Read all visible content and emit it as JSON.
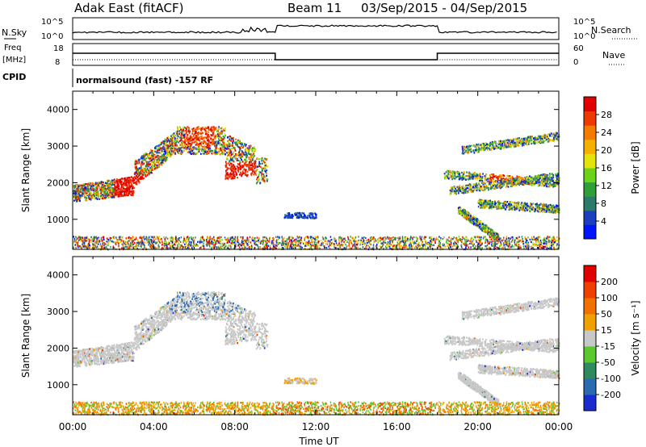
{
  "header": {
    "station": "Adak East (fitACF)",
    "beam_label": "Beam 11",
    "date_range": "03/Sep/2015 - 04/Sep/2015"
  },
  "strip": {
    "nsky_label": "N.Sky",
    "nsky_ticks": [
      "10^5",
      "10^0"
    ],
    "nsearch_label": "N.Search",
    "nsearch_ticks": [
      "10^5",
      "10^0"
    ],
    "freq_label_1": "Freq",
    "freq_label_2": "[MHz]",
    "freq_ticks": [
      "18",
      "8"
    ],
    "nave_label": "Nave",
    "nave_ticks": [
      "60",
      "0"
    ],
    "cpid_label": "CPID",
    "cpid_text": "normalsound (fast) -157 RF"
  },
  "chart_data": [
    {
      "type": "heatmap",
      "name": "power",
      "ylabel": "Slant Range [km]",
      "ylim": [
        180,
        4500
      ],
      "yticks": [
        1000,
        2000,
        3000,
        4000
      ],
      "xlim_hours": [
        0,
        24
      ],
      "colorbar": {
        "label": "Power [dB]",
        "ticks": [
          "4",
          "8",
          "12",
          "16",
          "20",
          "24",
          "28"
        ],
        "colors": [
          "#0014ff",
          "#1e3ec0",
          "#2e7a6a",
          "#2fa038",
          "#6cd21a",
          "#e4e40c",
          "#f5b100",
          "#f47a00",
          "#ee3a00",
          "#e00000"
        ]
      }
    },
    {
      "type": "heatmap",
      "name": "velocity",
      "ylabel": "Slant Range [km]",
      "ylim": [
        180,
        4500
      ],
      "yticks": [
        1000,
        2000,
        3000,
        4000
      ],
      "xlim_hours": [
        0,
        24
      ],
      "colorbar": {
        "label": "Velocity [m s⁻¹]",
        "ticks": [
          "200",
          "100",
          "50",
          "15",
          "-15",
          "-50",
          "-100",
          "-200"
        ],
        "colors": [
          "#1a2bd0",
          "#2a6ab0",
          "#2f8a60",
          "#5cc830",
          "#c8c8c8",
          "#f0a000",
          "#f07000",
          "#f04000",
          "#e00000"
        ]
      }
    }
  ],
  "xaxis": {
    "ticks": [
      "00:00",
      "04:00",
      "08:00",
      "12:00",
      "16:00",
      "20:00",
      "00:00"
    ],
    "label": "Time UT"
  },
  "legend_dots_label": ""
}
